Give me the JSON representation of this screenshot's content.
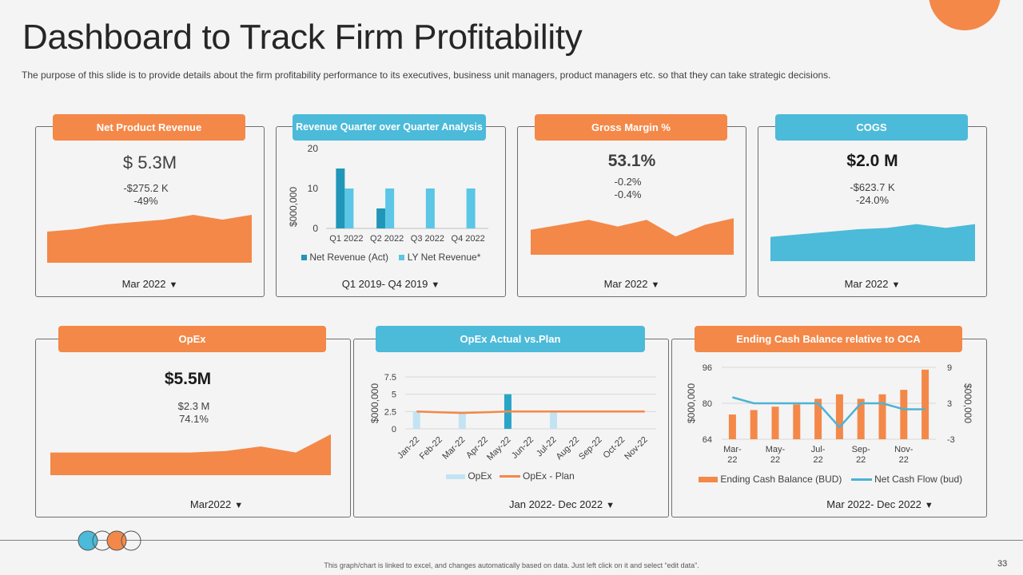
{
  "page": {
    "title": "Dashboard to Track Firm Profitability",
    "subtitle": "The purpose of this slide is to provide details about the firm profitability performance to its executives, business unit managers, product managers etc. so that they can take strategic decisions.",
    "note": "This graph/chart is linked to excel, and changes automatically based on data. Just left click on it and select “edit data”.",
    "page_number": "33",
    "accent_orange": "#f48848",
    "accent_blue": "#4cbad9"
  },
  "cards": {
    "net_revenue": {
      "label": "Net Product Revenue",
      "value": "$ 5.3M",
      "change1": "-$275.2 K",
      "change2": "-49%",
      "period": "Mar 2022",
      "arrow": "▼"
    },
    "revenue_qoq": {
      "label": "Revenue Quarter over Quarter Analysis",
      "period": "Q1 2019- Q4 2019",
      "arrow": "▼"
    },
    "gross_margin": {
      "label": "Gross Margin %",
      "value": "53.1%",
      "change1": "-0.2%",
      "change2": "-0.4%",
      "period": "Mar 2022",
      "arrow": "▼"
    },
    "cogs": {
      "label": "COGS",
      "value": "$2.0 M",
      "change1": "-$623.7 K",
      "change2": "-24.0%",
      "period": "Mar 2022",
      "arrow": "▼"
    },
    "opex": {
      "label": "OpEx",
      "value": "$5.5M",
      "change1": "$2.3 M",
      "change2": "74.1%",
      "period": "Mar2022",
      "arrow": "▼"
    },
    "opex_plan": {
      "label": "OpEx Actual vs.Plan",
      "period": "Jan 2022- Dec 2022",
      "arrow": "▼"
    },
    "cash_balance": {
      "label": "Ending Cash Balance relative to OCA",
      "period": "Mar 2022- Dec 2022",
      "arrow": "▼"
    }
  },
  "chart_data": [
    {
      "id": "net_revenue_spark",
      "type": "area",
      "values": [
        3,
        4,
        6,
        7,
        8,
        10,
        8,
        10
      ],
      "ylim": [
        -10,
        10
      ]
    },
    {
      "id": "revenue_qoq",
      "type": "bar",
      "categories": [
        "Q1 2022",
        "Q2 2022",
        "Q3 2022",
        "Q4 2022"
      ],
      "series": [
        {
          "name": "Net Revenue (Act)",
          "values": [
            15,
            5,
            0,
            0
          ],
          "color": "#2196b8"
        },
        {
          "name": "LY Net Revenue*",
          "values": [
            10,
            10,
            10,
            10
          ],
          "color": "#5bc6e6"
        }
      ],
      "ylabel": "$000,000",
      "ylim": [
        0,
        20
      ],
      "yticks": [
        "0",
        "10",
        "20"
      ]
    },
    {
      "id": "gross_margin_spark",
      "type": "area",
      "values": [
        5,
        8,
        11,
        7,
        11,
        1,
        8,
        12
      ],
      "ylim": [
        -10,
        15
      ]
    },
    {
      "id": "cogs_spark",
      "type": "area",
      "values": [
        4,
        6,
        8,
        10,
        11,
        14,
        11,
        14
      ],
      "ylim": [
        -15,
        20
      ]
    },
    {
      "id": "opex_spark",
      "type": "area",
      "values": [
        2,
        2,
        2,
        2,
        2,
        3,
        6,
        2,
        14
      ],
      "ylim": [
        -13,
        25
      ]
    },
    {
      "id": "opex_plan",
      "type": "bar",
      "categories": [
        "Jan-22",
        "Feb-22",
        "Mar-22",
        "Apr-22",
        "May-22",
        "Jun-22",
        "Jul-22",
        "Aug-22",
        "Sep-22",
        "Oct-22",
        "Nov-22"
      ],
      "series": [
        {
          "name": "OpEx",
          "values": [
            2.5,
            0,
            2.5,
            0,
            5,
            0,
            2.5,
            0,
            0,
            0,
            0
          ],
          "color": "#c3e3f3"
        },
        {
          "name": "OpEx - Plan",
          "values": [
            2.5,
            2.4,
            2.3,
            2.4,
            2.5,
            2.5,
            2.5,
            2.5,
            2.5,
            2.5,
            2.5
          ],
          "color": "#f48848"
        }
      ],
      "ylabel": "$000,000",
      "ylim": [
        0,
        7.5
      ],
      "yticks": [
        "0",
        "2.5",
        "5",
        "7.5"
      ]
    },
    {
      "id": "cash_balance",
      "type": "bar",
      "categories": [
        "Mar-22",
        "Apr-22",
        "May-22",
        "Jun-22",
        "Jul-22",
        "Aug-22",
        "Sep-22",
        "Oct-22",
        "Nov-22",
        "Dec-22"
      ],
      "xtick_labels": [
        [
          "Mar-",
          "22"
        ],
        [
          "May-",
          "22"
        ],
        [
          "Jul-",
          "22"
        ],
        [
          "Sep-",
          "22"
        ],
        [
          "Nov-",
          "22"
        ]
      ],
      "series": [
        {
          "name": "Ending Cash Balance (BUD)",
          "values": [
            75,
            77,
            78.5,
            79.5,
            82,
            84,
            82,
            84,
            86,
            95
          ],
          "color": "#f48848",
          "axis": "left"
        },
        {
          "name": "Net Cash Flow (bud)",
          "values": [
            4,
            3,
            3,
            3,
            3,
            -1,
            3,
            3,
            2,
            2
          ],
          "color": "#4cb3d6",
          "axis": "right"
        }
      ],
      "ylabel": "$000,000",
      "y2label": "$000,000",
      "ylim": [
        64,
        96
      ],
      "yticks": [
        "64",
        "80",
        "96"
      ],
      "y2lim": [
        -3,
        9
      ],
      "y2ticks": [
        "-3",
        "3",
        "9"
      ]
    }
  ]
}
